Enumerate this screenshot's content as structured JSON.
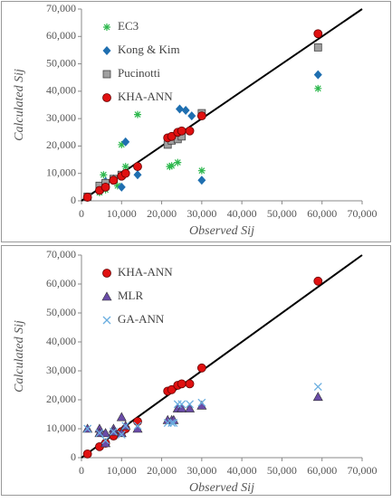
{
  "chart_data": [
    {
      "type": "scatter",
      "xlabel": "Observed Sij",
      "ylabel": "Calculated Sij",
      "xlim": [
        0,
        70000
      ],
      "ylim": [
        0,
        70000
      ],
      "xticks": [
        0,
        {
          "value": 10000,
          "label": "10,000"
        },
        {
          "value": 20000,
          "label": "20,000"
        },
        {
          "value": 30000,
          "label": "30,000"
        },
        {
          "value": 40000,
          "label": "40,000"
        },
        {
          "value": 50000,
          "label": "50,000"
        },
        {
          "value": 60000,
          "label": "60,000"
        },
        {
          "value": 70000,
          "label": "70,000"
        }
      ],
      "yticks": [
        0,
        {
          "value": 10000,
          "label": "10,000"
        },
        {
          "value": 20000,
          "label": "20,000"
        },
        {
          "value": 30000,
          "label": "30,000"
        },
        {
          "value": 40000,
          "label": "40,000"
        },
        {
          "value": 50000,
          "label": "50,000"
        },
        {
          "value": 60000,
          "label": "60,000"
        },
        {
          "value": 70000,
          "label": "70,000"
        }
      ],
      "legend": "upper left",
      "series": [
        {
          "name": "EC3",
          "color": "#2db84d",
          "marker": "asterisk",
          "x": [
            5500,
            10000,
            11000,
            14000,
            22000,
            22500,
            24000,
            30000,
            59000,
            4500,
            9000,
            6000
          ],
          "values": [
            9500,
            20500,
            12500,
            31500,
            12500,
            12800,
            14000,
            11000,
            41000,
            3000,
            5500,
            4000
          ]
        },
        {
          "name": "Kong & Kim",
          "color": "#1f6fb0",
          "marker": "diamond",
          "x": [
            6000,
            10000,
            11000,
            14000,
            24500,
            26000,
            27500,
            30000,
            59000,
            4500,
            8000,
            22000
          ],
          "values": [
            7000,
            5000,
            21500,
            9500,
            33500,
            33000,
            31000,
            7500,
            46000,
            4000,
            8000,
            22000
          ]
        },
        {
          "name": "Pucinotti",
          "color": "#a0a0a0",
          "marker": "square",
          "x": [
            4500,
            6000,
            8000,
            10000,
            21500,
            22500,
            24000,
            25000,
            30000,
            59000,
            1500
          ],
          "values": [
            5500,
            6500,
            8000,
            9500,
            20500,
            22000,
            22500,
            23500,
            32000,
            56000,
            1500
          ]
        },
        {
          "name": "KHA-ANN",
          "color": "#e01010",
          "marker": "circle",
          "x": [
            1500,
            4500,
            6000,
            8000,
            10000,
            11000,
            14000,
            21500,
            22500,
            24000,
            25000,
            27000,
            30000,
            59000
          ],
          "values": [
            1300,
            3800,
            5000,
            7500,
            9000,
            10000,
            12500,
            23000,
            23500,
            25000,
            25500,
            25500,
            31000,
            61000
          ]
        }
      ]
    },
    {
      "type": "scatter",
      "xlabel": "Observed Sij",
      "ylabel": "Calculated Sij",
      "xlim": [
        0,
        70000
      ],
      "ylim": [
        0,
        70000
      ],
      "xticks": [
        0,
        {
          "value": 10000,
          "label": "10,000"
        },
        {
          "value": 20000,
          "label": "20,000"
        },
        {
          "value": 30000,
          "label": "30,000"
        },
        {
          "value": 40000,
          "label": "40,000"
        },
        {
          "value": 50000,
          "label": "50,000"
        },
        {
          "value": 60000,
          "label": "60,000"
        },
        {
          "value": 70000,
          "label": "70,000"
        }
      ],
      "yticks": [
        0,
        {
          "value": 10000,
          "label": "10,000"
        },
        {
          "value": 20000,
          "label": "20,000"
        },
        {
          "value": 30000,
          "label": "30,000"
        },
        {
          "value": 40000,
          "label": "40,000"
        },
        {
          "value": 50000,
          "label": "50,000"
        },
        {
          "value": 60000,
          "label": "60,000"
        },
        {
          "value": 70000,
          "label": "70,000"
        }
      ],
      "legend": "upper left",
      "series": [
        {
          "name": "KHA-ANN",
          "color": "#e01010",
          "marker": "circle",
          "x": [
            1500,
            4500,
            6000,
            8000,
            10000,
            11000,
            14000,
            21500,
            22500,
            24000,
            25000,
            27000,
            30000,
            59000
          ],
          "values": [
            1300,
            3800,
            5000,
            7500,
            9000,
            10000,
            12500,
            23000,
            23500,
            25000,
            25500,
            25500,
            31000,
            61000
          ]
        },
        {
          "name": "MLR",
          "color": "#6a4ca8",
          "marker": "triangle",
          "x": [
            1500,
            4500,
            4500,
            6000,
            6000,
            8000,
            10000,
            10000,
            11000,
            14000,
            21500,
            22500,
            23000,
            24000,
            25000,
            27000,
            30000,
            59000,
            8000
          ],
          "values": [
            10000,
            10000,
            8500,
            8500,
            5000,
            10000,
            14000,
            8500,
            11000,
            10000,
            13000,
            13000,
            13000,
            17000,
            17000,
            17000,
            18000,
            21000,
            9000
          ]
        },
        {
          "name": "GA-ANN",
          "color": "#6aaee0",
          "marker": "x",
          "x": [
            1500,
            4500,
            6000,
            8000,
            10000,
            11000,
            14000,
            21500,
            22500,
            23000,
            24000,
            25000,
            27000,
            30000,
            59000
          ],
          "values": [
            10000,
            8500,
            6000,
            9000,
            8000,
            11000,
            11000,
            12000,
            12000,
            12000,
            18500,
            18500,
            18500,
            19000,
            24500
          ]
        }
      ]
    }
  ]
}
